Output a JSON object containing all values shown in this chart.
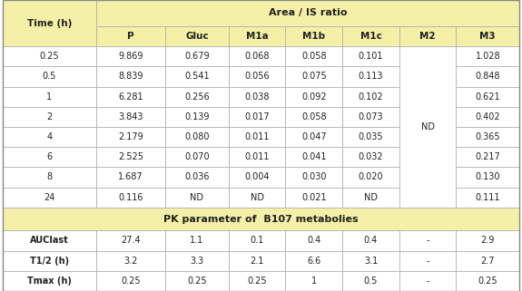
{
  "header_bg": "#F5F0A8",
  "cell_bg": "#FFFFFF",
  "border_color": "#AAAAAA",
  "text_color": "#222222",
  "col_headers": [
    "Time (h)",
    "P",
    "Gluc",
    "M1a",
    "M1b",
    "M1c",
    "M2",
    "M3"
  ],
  "area_header": "Area / IS ratio",
  "pk_header": "PK parameter of  B107 metabolies",
  "time_rows": [
    [
      "0.25",
      "9.869",
      "0.679",
      "0.068",
      "0.058",
      "0.101",
      "",
      "1.028"
    ],
    [
      "0.5",
      "8.839",
      "0.541",
      "0.056",
      "0.075",
      "0.113",
      "",
      "0.848"
    ],
    [
      "1",
      "6.281",
      "0.256",
      "0.038",
      "0.092",
      "0.102",
      "",
      "0.621"
    ],
    [
      "2",
      "3.843",
      "0.139",
      "0.017",
      "0.058",
      "0.073",
      "",
      "0.402"
    ],
    [
      "4",
      "2.179",
      "0.080",
      "0.011",
      "0.047",
      "0.035",
      "",
      "0.365"
    ],
    [
      "6",
      "2.525",
      "0.070",
      "0.011",
      "0.041",
      "0.032",
      "",
      "0.217"
    ],
    [
      "8",
      "1.687",
      "0.036",
      "0.004",
      "0.030",
      "0.020",
      "",
      "0.130"
    ],
    [
      "24",
      "0.116",
      "ND",
      "ND",
      "0.021",
      "ND",
      "",
      "0.111"
    ]
  ],
  "pk_rows": [
    [
      "AUClast",
      "27.4",
      "1.1",
      "0.1",
      "0.4",
      "0.4",
      "-",
      "2.9"
    ],
    [
      "T1/2 (h)",
      "3.2",
      "3.3",
      "2.1",
      "6.6",
      "3.1",
      "-",
      "2.7"
    ],
    [
      "Tmax (h)",
      "0.25",
      "0.25",
      "0.25",
      "1",
      "0.5",
      "-",
      "0.25"
    ]
  ],
  "col_widths_rel": [
    1.18,
    0.88,
    0.8,
    0.72,
    0.72,
    0.72,
    0.72,
    0.8
  ],
  "figsize": [
    5.75,
    3.21
  ],
  "dpi": 100
}
